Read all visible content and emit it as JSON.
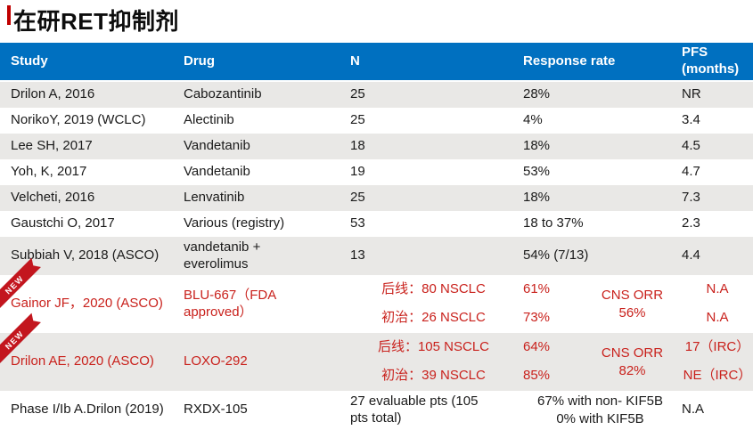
{
  "title": "在研RET抑制剂",
  "colors": {
    "header_bg": "#0070C0",
    "header_text": "#FFFFFF",
    "banded_row_bg": "#E9E8E6",
    "white_row_bg": "#FFFFFF",
    "highlight_red": "#C9211C",
    "ribbon_red": "#C3161E",
    "title_accent_red": "#C00000"
  },
  "table": {
    "headers": {
      "study": "Study",
      "drug": "Drug",
      "n": "N",
      "response": "Response rate",
      "pfs": "PFS (months)"
    },
    "rows": [
      {
        "study": "Drilon A, 2016",
        "drug": "Cabozantinib",
        "n": "25",
        "response": "28%",
        "pfs": "NR"
      },
      {
        "study": "NorikoY, 2019 (WCLC)",
        "drug": "Alectinib",
        "n": "25",
        "response": "4%",
        "pfs": "3.4"
      },
      {
        "study": "Lee SH, 2017",
        "drug": "Vandetanib",
        "n": "18",
        "response": "18%",
        "pfs": "4.5"
      },
      {
        "study": "Yoh, K, 2017",
        "drug": "Vandetanib",
        "n": "19",
        "response": "53%",
        "pfs": "4.7"
      },
      {
        "study": "Velcheti, 2016",
        "drug": "Lenvatinib",
        "n": "25",
        "response": "18%",
        "pfs": "7.3"
      },
      {
        "study": "Gaustchi O, 2017",
        "drug": "Various (registry)",
        "n": "53",
        "response": "18 to 37%",
        "pfs": "2.3"
      },
      {
        "study": "Subbiah V, 2018 (ASCO)",
        "drug": "vandetanib + everolimus",
        "n": "13",
        "response": "54% (7/13)",
        "pfs": "4.4"
      },
      {
        "badge": "NEW",
        "study": "Gainor JF，2020 (ASCO)",
        "drug": "BLU-667（FDA approved）",
        "n_line1": "后线：80 NSCLC",
        "n_line2": "初治：26 NSCLC",
        "response_line1": "61%",
        "response_line2": "73%",
        "cns_line1": "CNS ORR",
        "cns_line2": "56%",
        "pfs_line1": "N.A",
        "pfs_line2": "N.A"
      },
      {
        "badge": "NEW",
        "study": "Drilon AE, 2020 (ASCO)",
        "drug": "LOXO-292",
        "n_line1": "后线：105 NSCLC",
        "n_line2": "初治：39 NSCLC",
        "response_line1": "64%",
        "response_line2": "85%",
        "cns_line1": "CNS ORR",
        "cns_line2": "82%",
        "pfs_line1": "17（IRC）",
        "pfs_line2": "NE（IRC）"
      },
      {
        "study": "Phase I/Ib A.Drilon (2019)",
        "drug": "RXDX-105",
        "n": "27 evaluable pts (105 pts total)",
        "response_line1": "67% with non- KIF5B",
        "response_line2": "0% with KIF5B",
        "pfs": "N.A"
      }
    ]
  }
}
